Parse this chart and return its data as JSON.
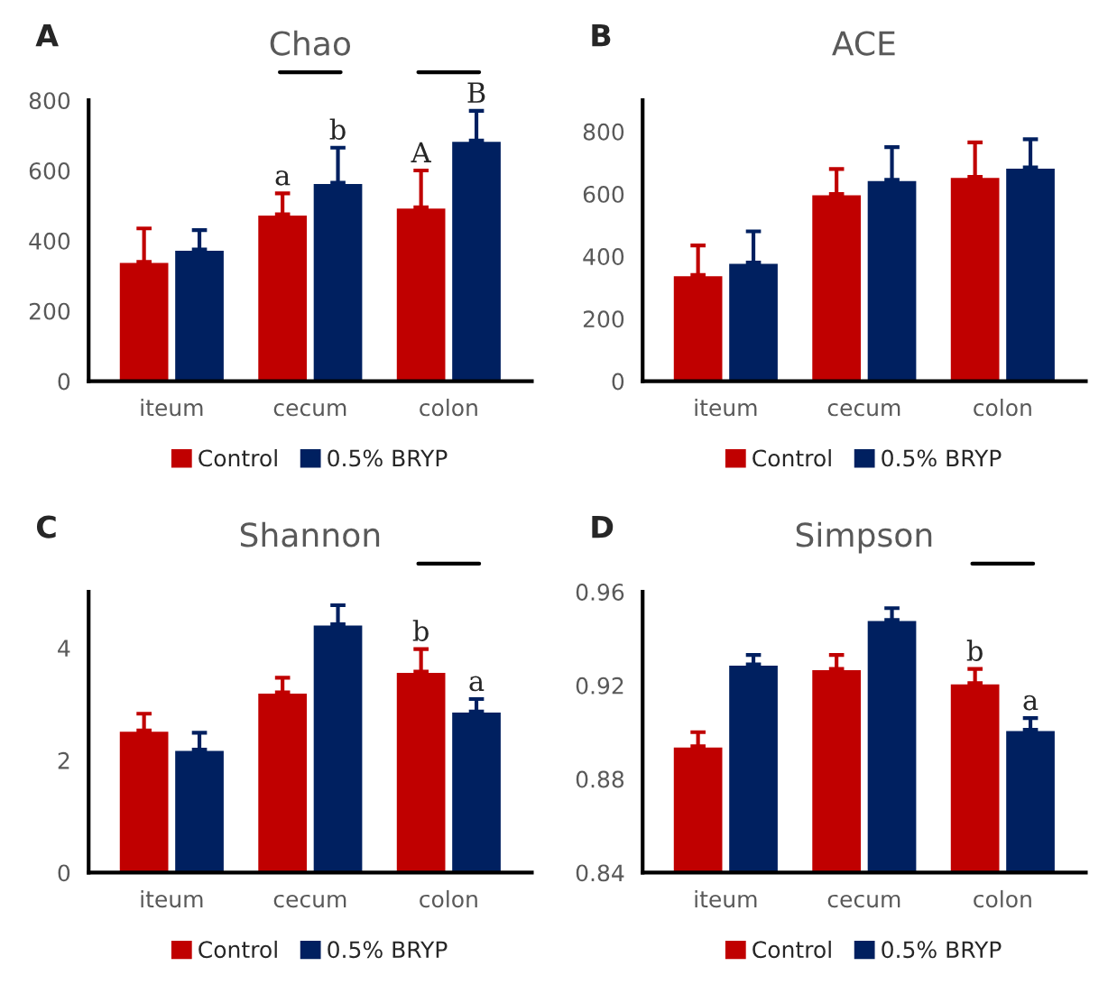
{
  "chart_data": [
    {
      "type": "bar",
      "title": "Chao",
      "annotations": [
        "A"
      ],
      "categories": [
        "iteum",
        "cecum",
        "colon"
      ],
      "ylim": [
        0,
        800
      ],
      "yticks": [
        0,
        200,
        400,
        600,
        800
      ],
      "legend": "bottom",
      "grid": false,
      "series": [
        {
          "name": "Control",
          "color": "#c00000",
          "values": [
            340,
            475,
            495
          ],
          "errors": [
            [
              340,
              435
            ],
            [
              475,
              535
            ],
            [
              495,
              600
            ]
          ],
          "value_labels": [
            null,
            "a",
            "A"
          ]
        },
        {
          "name": "0.5% BRYP",
          "color": "#002060",
          "values": [
            375,
            565,
            685
          ],
          "errors": [
            [
              375,
              430
            ],
            [
              565,
              665
            ],
            [
              685,
              770
            ]
          ],
          "value_labels": [
            null,
            "b",
            "B"
          ]
        }
      ]
    },
    {
      "type": "bar",
      "title": "ACE",
      "annotations": [
        "B"
      ],
      "categories": [
        "iteum",
        "cecum",
        "colon"
      ],
      "ylim": [
        0,
        900
      ],
      "yticks": [
        0,
        200,
        400,
        600,
        800
      ],
      "legend": "bottom",
      "grid": false,
      "series": [
        {
          "name": "Control",
          "color": "#c00000",
          "values": [
            340,
            600,
            655
          ],
          "errors": [
            [
              340,
              435
            ],
            [
              600,
              680
            ],
            [
              655,
              765
            ]
          ]
        },
        {
          "name": "0.5% BRYP",
          "color": "#002060",
          "values": [
            380,
            645,
            685
          ],
          "errors": [
            [
              380,
              480
            ],
            [
              645,
              750
            ],
            [
              685,
              775
            ]
          ]
        }
      ]
    },
    {
      "type": "bar",
      "title": "Shannon",
      "annotations": [
        "C"
      ],
      "categories": [
        "iteum",
        "cecum",
        "colon"
      ],
      "ylim": [
        0,
        5
      ],
      "yticks": [
        0,
        2,
        4
      ],
      "legend": "bottom",
      "grid": false,
      "series": [
        {
          "name": "Control",
          "color": "#c00000",
          "values": [
            2.53,
            3.21,
            3.58
          ],
          "errors": [
            [
              2.53,
              2.83
            ],
            [
              3.21,
              3.47
            ],
            [
              3.58,
              3.98
            ]
          ],
          "value_labels": [
            null,
            null,
            "b"
          ]
        },
        {
          "name": "0.5% BRYP",
          "color": "#002060",
          "values": [
            2.19,
            4.42,
            2.87
          ],
          "errors": [
            [
              2.19,
              2.49
            ],
            [
              4.42,
              4.76
            ],
            [
              2.87,
              3.09
            ]
          ],
          "value_labels": [
            null,
            null,
            "a"
          ]
        }
      ]
    },
    {
      "type": "bar",
      "title": "Simpson",
      "annotations": [
        "D"
      ],
      "categories": [
        "iteum",
        "cecum",
        "colon"
      ],
      "ylim": [
        0.84,
        0.96
      ],
      "yticks": [
        {
          "value": 0.84,
          "label": "0.84"
        },
        {
          "value": 0.88,
          "label": "0.88"
        },
        {
          "value": 0.92,
          "label": "0.92"
        },
        {
          "value": 0.96,
          "label": "0.96"
        }
      ],
      "legend": "bottom",
      "grid": false,
      "series": [
        {
          "name": "Control",
          "color": "#c00000",
          "values": [
            0.894,
            0.927,
            0.921
          ],
          "errors": [
            [
              0.894,
              0.9
            ],
            [
              0.927,
              0.933
            ],
            [
              0.921,
              0.927
            ]
          ],
          "value_labels": [
            null,
            null,
            "b"
          ]
        },
        {
          "name": "0.5% BRYP",
          "color": "#002060",
          "values": [
            0.929,
            0.948,
            0.901
          ],
          "errors": [
            [
              0.929,
              0.933
            ],
            [
              0.948,
              0.953
            ],
            [
              0.901,
              0.906
            ]
          ],
          "value_labels": [
            null,
            null,
            "a"
          ]
        }
      ]
    }
  ]
}
